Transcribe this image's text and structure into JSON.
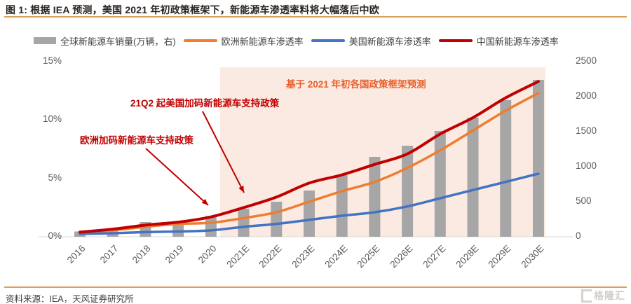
{
  "title": "图 1: 根据 IEA 预测，美国 2021 年初政策框架下，新能源车渗透率料将大幅落后中欧",
  "chart_data": {
    "type": "combo bar+line",
    "categories": [
      "2016",
      "2017",
      "2018",
      "2019",
      "2020",
      "2021E",
      "2022E",
      "2023E",
      "2024E",
      "2025E",
      "2026E",
      "2027E",
      "2028E",
      "2029E",
      "2030E"
    ],
    "series": [
      {
        "name": "全球新能源车销量(万辆，右)",
        "type": "bar",
        "axis": "right",
        "color": "#A6A6A6",
        "values": [
          75,
          105,
          210,
          220,
          300,
          400,
          500,
          660,
          880,
          1140,
          1300,
          1510,
          1700,
          1950,
          2240
        ]
      },
      {
        "name": "欧洲新能源车渗透率",
        "type": "line",
        "axis": "left",
        "color": "#ED7D31",
        "values": [
          0.35,
          0.55,
          0.85,
          1.1,
          1.2,
          1.6,
          2.1,
          3.0,
          3.9,
          4.7,
          5.9,
          7.4,
          9.1,
          10.8,
          12.3
        ]
      },
      {
        "name": "美国新能源车渗透率",
        "type": "line",
        "axis": "left",
        "color": "#4472C4",
        "values": [
          0.25,
          0.3,
          0.4,
          0.45,
          0.55,
          0.85,
          1.1,
          1.45,
          1.8,
          2.1,
          2.6,
          3.3,
          4.0,
          4.7,
          5.4
        ]
      },
      {
        "name": "中国新能源车渗透率",
        "type": "line",
        "axis": "left",
        "color": "#C00000",
        "values": [
          0.4,
          0.65,
          1.0,
          1.25,
          1.7,
          2.5,
          3.4,
          4.6,
          5.3,
          6.2,
          7.1,
          8.8,
          10.2,
          11.9,
          13.3
        ]
      }
    ],
    "left_axis": {
      "ticks": [
        "0%",
        "5%",
        "10%",
        "15%"
      ],
      "tick_values": [
        0,
        5,
        10,
        15
      ],
      "min": 0,
      "max": 15,
      "unit": "%"
    },
    "right_axis": {
      "ticks": [
        "0",
        "500",
        "1000",
        "1500",
        "2000",
        "2500"
      ],
      "tick_values": [
        0,
        500,
        1000,
        1500,
        2000,
        2500
      ],
      "min": 0,
      "max": 2500
    },
    "grid": false,
    "legend_position": "top",
    "forecast_region": {
      "start_category": "2021E",
      "end_category": "2030E",
      "fill": "#FBEAE1"
    },
    "annotations": [
      {
        "text": "基于 2021 年初各国政策框架预测",
        "color": "#E8602C"
      },
      {
        "text": "21Q2 起美国加码新能源车支持政策",
        "color": "#C00000"
      },
      {
        "text": "欧洲加码新能源车支持政策",
        "color": "#C00000"
      }
    ]
  },
  "footer": {
    "source": "资料来源：IEA，天风证券研究所"
  },
  "watermark": {
    "text": "格隆汇"
  },
  "colors": {
    "accent_rule": "#D9A157",
    "axis_text": "#595959",
    "legend_text": "#404040",
    "annotation_red": "#C00000",
    "forecast_label": "#E8602C",
    "bar_gray": "#A6A6A6"
  }
}
